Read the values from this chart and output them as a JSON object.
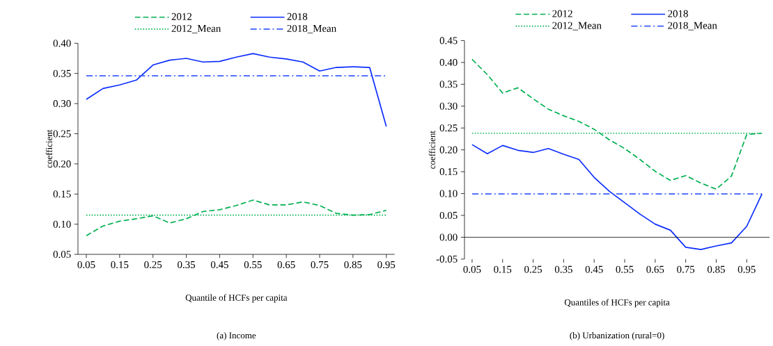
{
  "chart_data": [
    {
      "type": "line",
      "xlabel": "Quantile of HCFs per capita",
      "ylabel": "coefficient",
      "annotations": [
        "(a) Income"
      ],
      "categories": [
        "0.05",
        null,
        "0.15",
        null,
        "0.25",
        null,
        "0.35",
        null,
        "0.45",
        null,
        "0.55",
        null,
        "0.65",
        null,
        "0.75",
        null,
        "0.85",
        null,
        "0.95"
      ],
      "series": [
        {
          "name": "2012",
          "color": "#00b050",
          "line_style": "dashed",
          "values": [
            0.081,
            0.097,
            0.105,
            0.109,
            0.114,
            0.102,
            0.109,
            0.121,
            0.124,
            0.131,
            0.14,
            0.132,
            0.132,
            0.137,
            0.131,
            0.118,
            0.115,
            0.116,
            0.123
          ]
        },
        {
          "name": "2018",
          "color": "#0a2cff",
          "line_style": "solid",
          "values": [
            0.307,
            0.325,
            0.331,
            0.339,
            0.364,
            0.372,
            0.375,
            0.369,
            0.37,
            0.377,
            0.383,
            0.377,
            0.374,
            0.369,
            0.354,
            0.36,
            0.361,
            0.36,
            0.262
          ]
        },
        {
          "name": "2012_Mean",
          "color": "#00b050",
          "line_style": "dotted",
          "values": [
            0.115,
            0.115,
            0.115,
            0.115,
            0.115,
            0.115,
            0.115,
            0.115,
            0.115,
            0.115,
            0.115,
            0.115,
            0.115,
            0.115,
            0.115,
            0.115,
            0.115,
            0.115,
            0.115
          ]
        },
        {
          "name": "2018_Mean",
          "color": "#3d5cff",
          "line_style": "dashdot",
          "values": [
            0.346,
            0.346,
            0.346,
            0.346,
            0.346,
            0.346,
            0.346,
            0.346,
            0.346,
            0.346,
            0.346,
            0.346,
            0.346,
            0.346,
            0.346,
            0.346,
            0.346,
            0.346,
            0.346
          ]
        }
      ],
      "ylim": [
        0.05,
        0.4
      ],
      "yticks": [
        0.05,
        {
          "value": 0.1,
          "label": "0.10"
        },
        0.15,
        {
          "value": 0.2,
          "label": "0.20"
        },
        0.25,
        {
          "value": 0.3,
          "label": "0.30"
        },
        0.35,
        {
          "value": 0.4,
          "label": "0.40"
        }
      ],
      "legend": "top",
      "grid": false
    },
    {
      "type": "line",
      "xlabel": "Quantiles of HCFs per capita",
      "ylabel": "coefficient",
      "annotations": [
        "(b) Urbanization (rural=0)"
      ],
      "categories": [
        "0.05",
        null,
        "0.15",
        null,
        "0.25",
        null,
        "0.35",
        null,
        "0.45",
        null,
        "0.55",
        null,
        "0.65",
        null,
        "0.75",
        null,
        "0.85",
        null,
        "0.95",
        null
      ],
      "series": [
        {
          "name": "2012",
          "color": "#00b050",
          "line_style": "dashed",
          "values": [
            0.407,
            0.372,
            0.33,
            0.342,
            0.317,
            0.293,
            0.278,
            0.265,
            0.247,
            0.223,
            0.203,
            0.178,
            0.151,
            0.13,
            0.141,
            0.124,
            0.11,
            0.14,
            0.235,
            0.238
          ]
        },
        {
          "name": "2018",
          "color": "#0a2cff",
          "line_style": "solid",
          "values": [
            0.212,
            0.191,
            0.21,
            0.199,
            0.194,
            0.203,
            0.19,
            0.178,
            0.137,
            0.105,
            0.079,
            0.053,
            0.03,
            0.016,
            -0.023,
            -0.028,
            -0.02,
            -0.013,
            0.025,
            0.099
          ]
        },
        {
          "name": "2012_Mean",
          "color": "#00b050",
          "line_style": "dotted",
          "values": [
            0.238,
            0.238,
            0.238,
            0.238,
            0.238,
            0.238,
            0.238,
            0.238,
            0.238,
            0.238,
            0.238,
            0.238,
            0.238,
            0.238,
            0.238,
            0.238,
            0.238,
            0.238,
            0.238,
            0.238
          ]
        },
        {
          "name": "2018_Mean",
          "color": "#3d5cff",
          "line_style": "dashdot",
          "values": [
            0.099,
            0.099,
            0.099,
            0.099,
            0.099,
            0.099,
            0.099,
            0.099,
            0.099,
            0.099,
            0.099,
            0.099,
            0.099,
            0.099,
            0.099,
            0.099,
            0.099,
            0.099,
            0.099,
            0.099
          ]
        }
      ],
      "ylim": [
        -0.05,
        0.45
      ],
      "yticks": [
        -0.05,
        {
          "value": 0,
          "label": "0.00"
        },
        0.05,
        {
          "value": 0.1,
          "label": "0.10"
        },
        0.15,
        {
          "value": 0.2,
          "label": "0.20"
        },
        0.25,
        {
          "value": 0.3,
          "label": "0.30"
        },
        0.35,
        {
          "value": 0.4,
          "label": "0.40"
        },
        0.45
      ],
      "ref_lines": [
        {
          "axis": "y",
          "value": 0,
          "color": "#000000"
        }
      ],
      "legend": "top",
      "grid": false
    }
  ]
}
